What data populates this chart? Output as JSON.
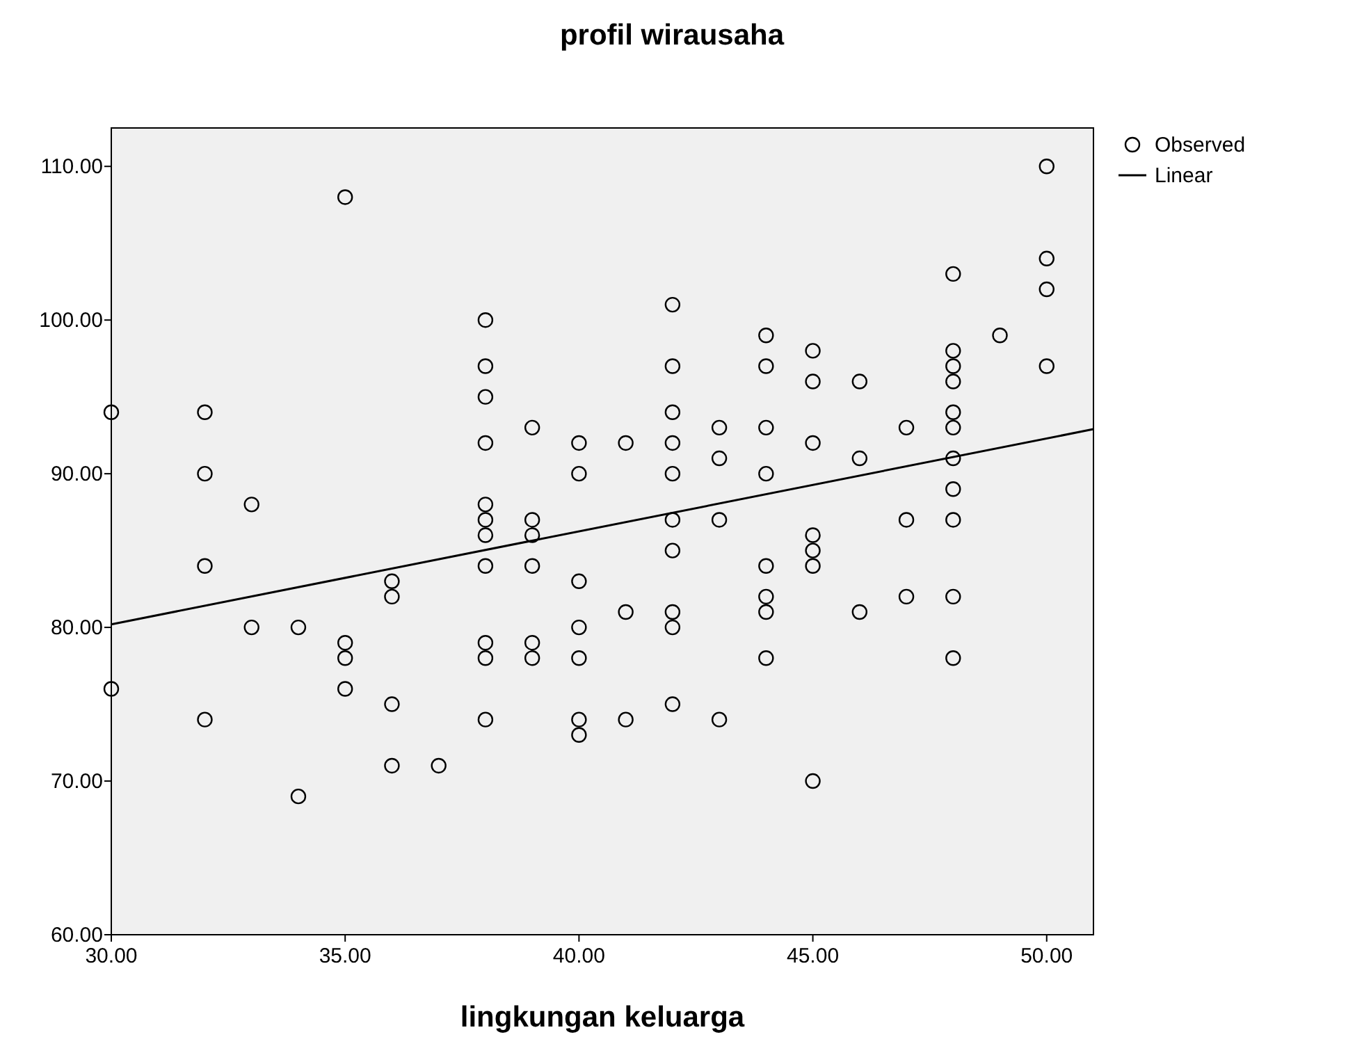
{
  "chart_data": {
    "type": "scatter",
    "title": "profil wirausaha",
    "xlabel": "lingkungan keluarga",
    "xlim": [
      30,
      51
    ],
    "ylim": [
      60,
      112.5
    ],
    "xticks": [
      {
        "value": 30,
        "label": "30.00"
      },
      {
        "value": 35,
        "label": "35.00"
      },
      {
        "value": 40,
        "label": "40.00"
      },
      {
        "value": 45,
        "label": "45.00"
      },
      {
        "value": 50,
        "label": "50.00"
      }
    ],
    "yticks": [
      {
        "value": 60,
        "label": "60.00"
      },
      {
        "value": 70,
        "label": "70.00"
      },
      {
        "value": 80,
        "label": "80.00"
      },
      {
        "value": 90,
        "label": "90.00"
      },
      {
        "value": 100,
        "label": "100.00"
      },
      {
        "value": 110,
        "label": "110.00"
      }
    ],
    "grid": false,
    "legend": "top right",
    "marker": "circle",
    "series": [
      {
        "name": "Observed",
        "color": "#000000",
        "x": [
          30,
          30,
          32,
          32,
          32,
          32,
          33,
          33,
          34,
          34,
          35,
          35,
          35,
          35,
          36,
          36,
          36,
          36,
          37,
          38,
          38,
          38,
          38,
          38,
          38,
          38,
          38,
          38,
          38,
          38,
          39,
          39,
          39,
          39,
          39,
          39,
          40,
          40,
          40,
          40,
          40,
          40,
          40,
          41,
          41,
          41,
          42,
          42,
          42,
          42,
          42,
          42,
          42,
          42,
          42,
          42,
          43,
          43,
          43,
          43,
          44,
          44,
          44,
          44,
          44,
          44,
          44,
          44,
          45,
          45,
          45,
          45,
          45,
          45,
          45,
          46,
          46,
          46,
          47,
          47,
          47,
          48,
          48,
          48,
          48,
          48,
          48,
          48,
          48,
          48,
          48,
          48,
          49,
          50,
          50,
          50,
          50
        ],
        "values": [
          94,
          76,
          94,
          90,
          84,
          74,
          88,
          80,
          80,
          69,
          108,
          79,
          78,
          76,
          83,
          82,
          75,
          71,
          71,
          100,
          97,
          95,
          92,
          88,
          87,
          86,
          84,
          79,
          78,
          74,
          93,
          87,
          86,
          84,
          79,
          78,
          92,
          90,
          83,
          80,
          78,
          74,
          73,
          92,
          81,
          74,
          101,
          97,
          94,
          92,
          90,
          87,
          85,
          81,
          80,
          75,
          93,
          91,
          87,
          74,
          99,
          97,
          93,
          90,
          84,
          82,
          81,
          78,
          98,
          96,
          92,
          86,
          85,
          84,
          70,
          96,
          91,
          81,
          93,
          87,
          82,
          103,
          98,
          97,
          96,
          94,
          93,
          91,
          89,
          87,
          82,
          78,
          99,
          110,
          104,
          102,
          97
        ]
      },
      {
        "name": "Linear",
        "type": "line",
        "color": "#000000",
        "line_style": "solid",
        "marker": "none",
        "x": [
          30,
          51
        ],
        "values": [
          80.2,
          92.9
        ]
      }
    ]
  }
}
